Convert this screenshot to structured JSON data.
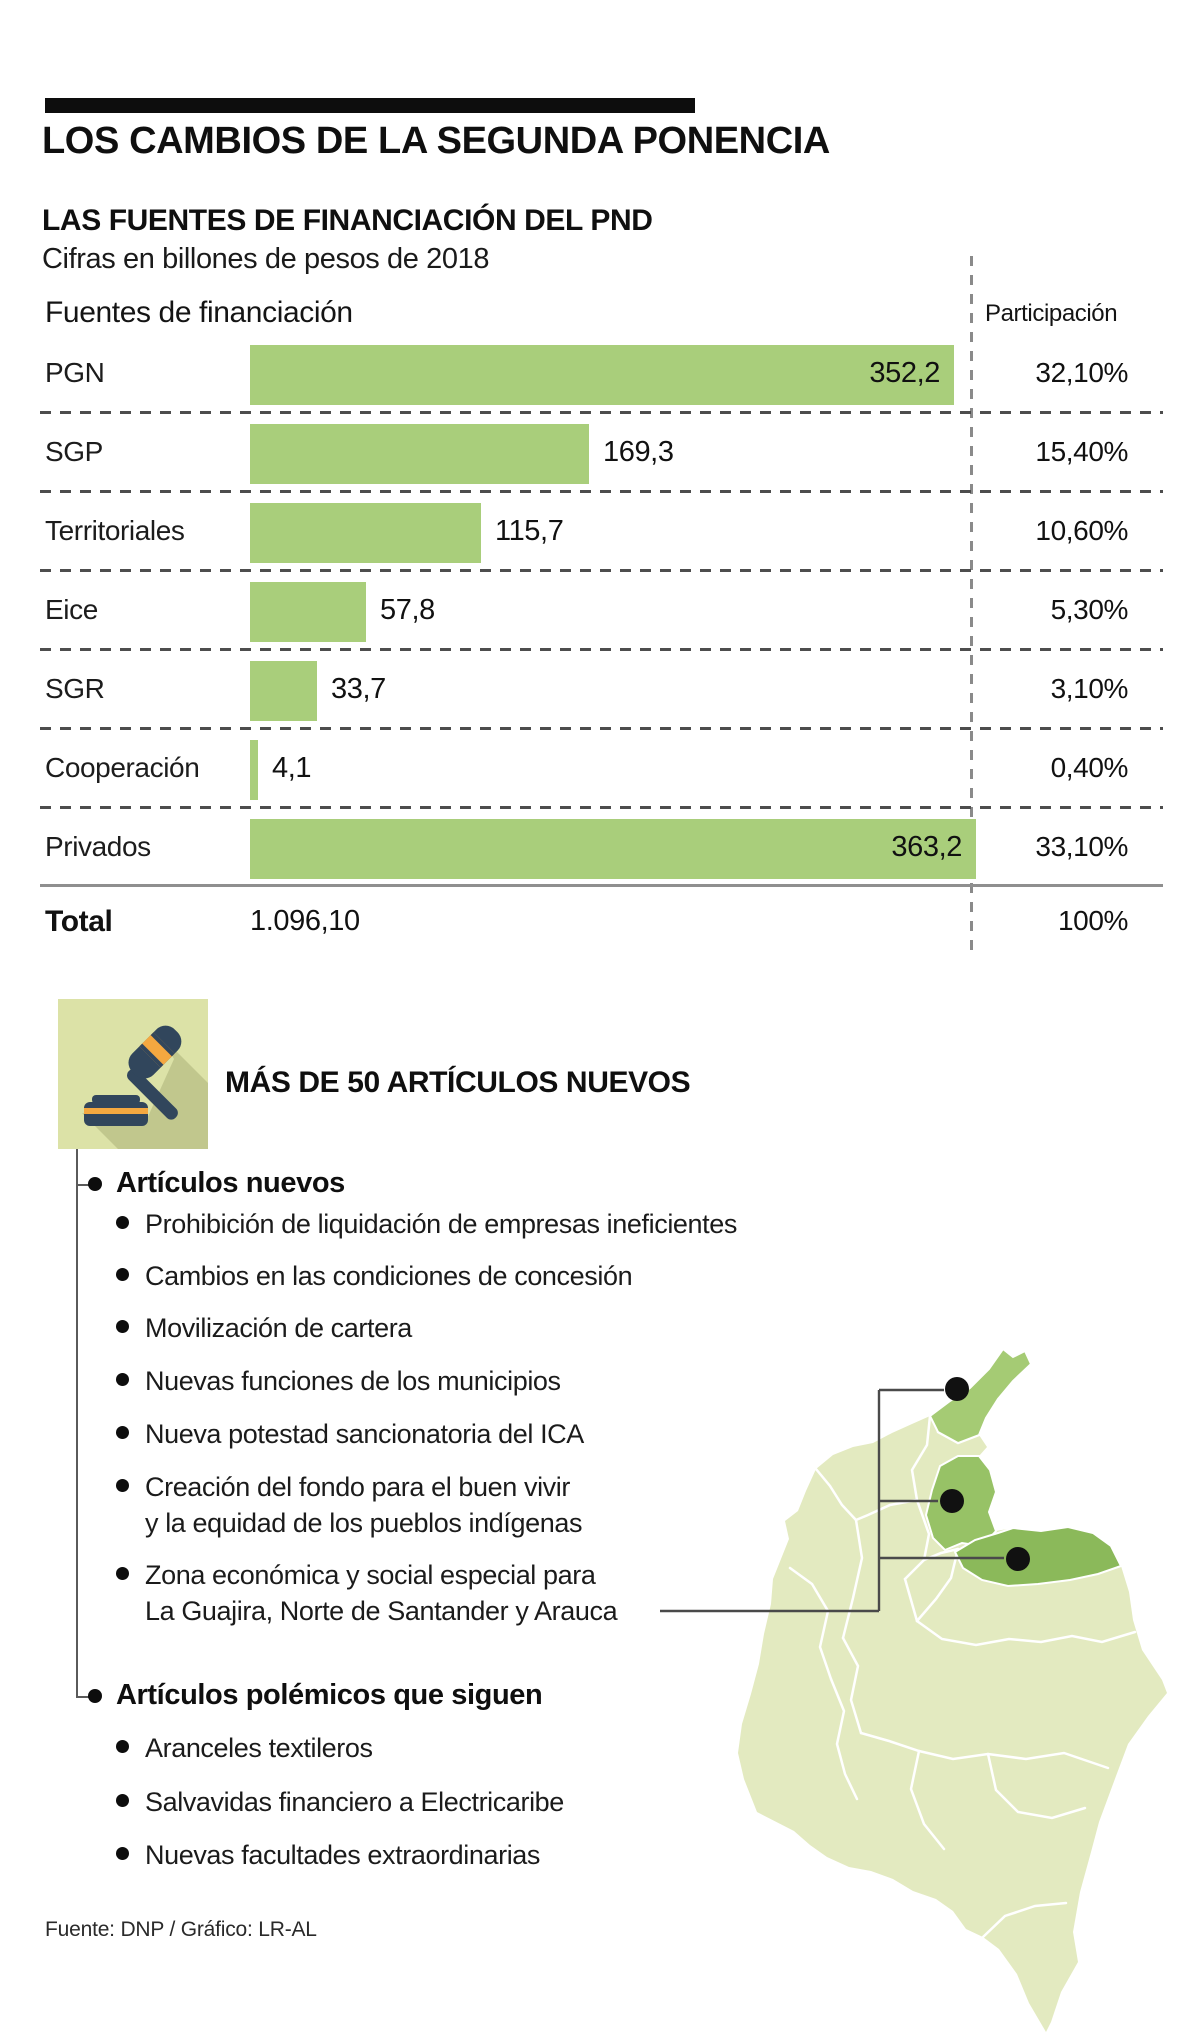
{
  "header": {
    "title": "LOS CAMBIOS DE LA SEGUNDA PONENCIA",
    "subtitle": "LAS FUENTES DE FINANCIACIÓN DEL PND",
    "units_note": "Cifras en billones de pesos de 2018"
  },
  "chart_data": {
    "type": "bar",
    "title": "LAS FUENTES DE FINANCIACIÓN DEL PND",
    "subtitle": "Cifras en billones de pesos de 2018",
    "xlabel": "",
    "ylabel": "",
    "column_headers": {
      "left": "Fuentes de financiación",
      "right": "Participación"
    },
    "categories": [
      "PGN",
      "SGP",
      "Territoriales",
      "Eice",
      "SGR",
      "Cooperación",
      "Privados"
    ],
    "values": [
      352.2,
      169.3,
      115.7,
      57.8,
      33.7,
      4.1,
      363.2
    ],
    "value_labels": [
      "352,2",
      "169,3",
      "115,7",
      "57,8",
      "33,7",
      "4,1",
      "363,2"
    ],
    "participation": [
      "32,10%",
      "15,40%",
      "10,60%",
      "5,30%",
      "3,10%",
      "0,40%",
      "33,10%"
    ],
    "total": {
      "label": "Total",
      "value": "1.096,10",
      "participation": "100%"
    },
    "xlim": [
      0,
      363.2
    ],
    "grid": "dashed-row-separators",
    "bar_color": "#a9ce7b"
  },
  "section2": {
    "icon": "gavel-icon",
    "heading": "MÁS DE 50 ARTÍCULOS NUEVOS",
    "groups": [
      {
        "title": "Artículos nuevos",
        "items": [
          "Prohibición de liquidación de empresas ineficientes",
          "Cambios en las condiciones de concesión",
          "Movilización de cartera",
          "Nuevas funciones de los municipios",
          "Nueva potestad sancionatoria del ICA",
          "Creación del fondo para el buen vivir\ny la equidad de los pueblos indígenas",
          "Zona económica y social especial para\nLa Guajira, Norte de Santander y Arauca"
        ]
      },
      {
        "title": "Artículos polémicos que siguen",
        "items": [
          "Aranceles textileros",
          "Salvavidas financiero a Electricaribe",
          "Nuevas facultades extraordinarias"
        ]
      }
    ]
  },
  "map": {
    "name": "colombia-map",
    "highlighted_regions": [
      "La Guajira",
      "Norte de Santander",
      "Arauca"
    ],
    "base_color": "#e3eac0",
    "highlight_colors": [
      "#a5cb74",
      "#97c266",
      "#8bb95a"
    ],
    "marker_color": "#111111"
  },
  "footer": {
    "source": "Fuente: DNP / Gráfico: LR-AL"
  }
}
